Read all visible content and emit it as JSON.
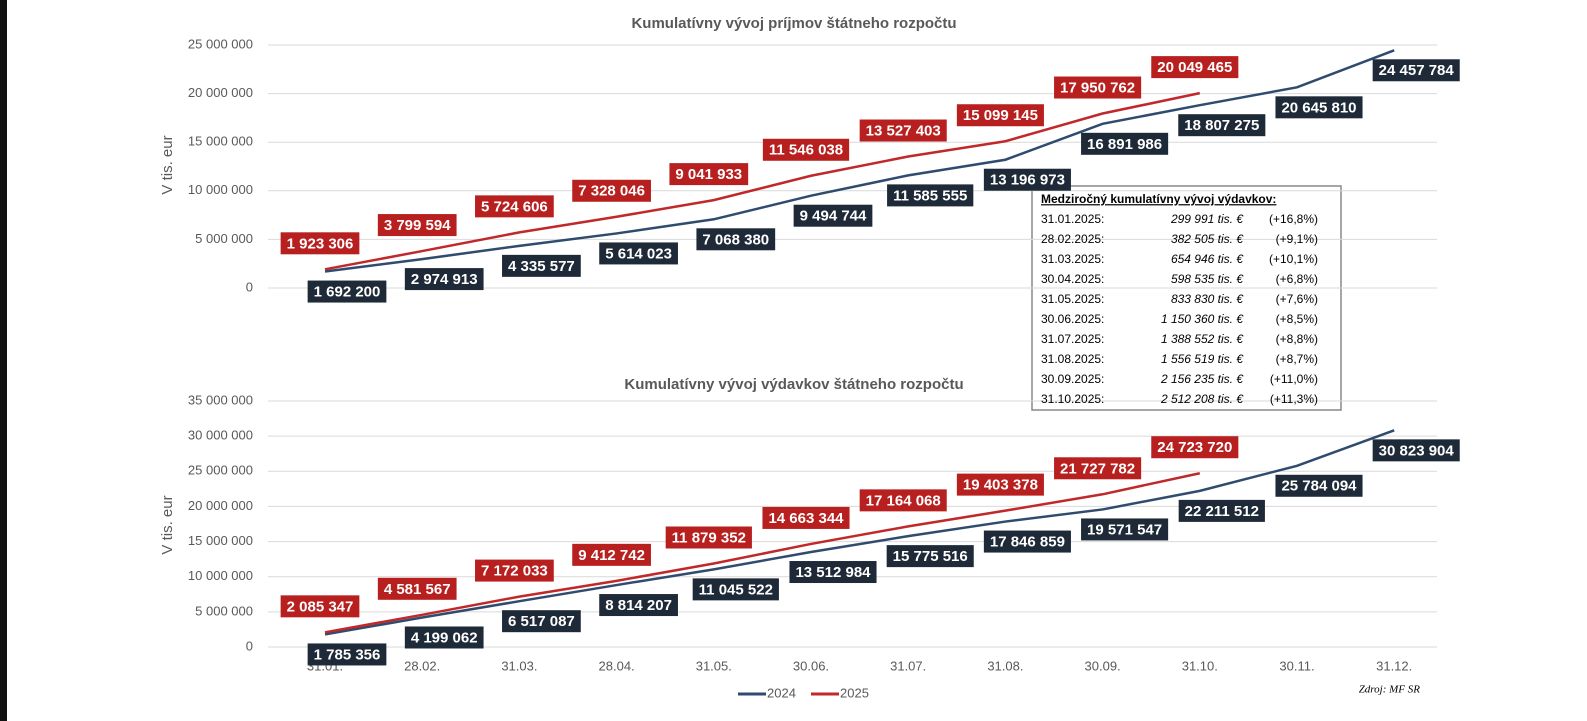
{
  "chart_data": [
    {
      "type": "line",
      "title": "Kumulatívny vývoj príjmov štátneho rozpočtu",
      "ylabel": "V tis. eur",
      "ylim": [
        0,
        25000000
      ],
      "yticks": [
        0,
        {
          "value": 5000000,
          "label": "5 000 000"
        },
        {
          "value": 10000000,
          "label": "10 000 000"
        },
        {
          "value": 15000000,
          "label": "15 000 000"
        },
        {
          "value": 20000000,
          "label": "20 000 000"
        },
        {
          "value": 25000000,
          "label": "25 000 000"
        }
      ],
      "grid": true,
      "series": [
        {
          "color": "#2f4b6e",
          "label_color": "#1f2a38",
          "values": [
            1692200,
            2974913,
            4335577,
            5614023,
            7068380,
            9494744,
            11585555,
            13196973,
            16891986,
            18807275,
            20645810,
            24457784
          ],
          "value_labels": [
            "1 692 200",
            "2 974 913",
            "4 335 577",
            "5 614 023",
            "7 068 380",
            "9 494 744",
            "11 585 555",
            "13 196 973",
            "16 891 986",
            "18 807 275",
            "20 645 810",
            "24 457 784"
          ]
        },
        {
          "color": "#c0282a",
          "label_color": "#b8201f",
          "values": [
            1923306,
            3799594,
            5724606,
            7328046,
            9041933,
            11546038,
            13527403,
            15099145,
            17950762,
            20049465,
            null,
            null
          ],
          "value_labels": [
            "1 923 306",
            "3 799 594",
            "5 724 606",
            "7 328 046",
            "9 041 933",
            "11 546 038",
            "13 527 403",
            "15 099 145",
            "17 950 762",
            "20 049 465",
            null,
            null
          ]
        }
      ]
    },
    {
      "type": "line",
      "title": "Kumulatívny vývoj výdavkov štátneho rozpočtu",
      "ylabel": "V tis. eur",
      "categories": [
        "31.01.",
        "28.02.",
        "31.03.",
        "28.04.",
        "31.05.",
        "30.06.",
        "31.07.",
        "31.08.",
        "30.09.",
        "31.10.",
        "30.11.",
        "31.12."
      ],
      "ylim": [
        0,
        35000000
      ],
      "yticks": [
        0,
        {
          "value": 5000000,
          "label": "5 000 000"
        },
        {
          "value": 10000000,
          "label": "10 000 000"
        },
        {
          "value": 15000000,
          "label": "15 000 000"
        },
        {
          "value": 20000000,
          "label": "20 000 000"
        },
        {
          "value": 25000000,
          "label": "25 000 000"
        },
        {
          "value": 30000000,
          "label": "30 000 000"
        },
        {
          "value": 35000000,
          "label": "35 000 000"
        }
      ],
      "grid": true,
      "legend": "bottom",
      "series": [
        {
          "name": "2024",
          "color": "#2f4b6e",
          "label_color": "#1f2a38",
          "values": [
            1785356,
            4199062,
            6517087,
            8814207,
            11045522,
            13512984,
            15775516,
            17846859,
            19571547,
            22211512,
            25784094,
            30823904
          ],
          "value_labels": [
            "1 785 356",
            "4 199 062",
            "6 517 087",
            "8 814 207",
            "11 045 522",
            "13 512 984",
            "15 775 516",
            "17 846 859",
            "19 571 547",
            "22 211 512",
            "25 784 094",
            "30 823 904"
          ]
        },
        {
          "name": "2025",
          "color": "#c0282a",
          "label_color": "#b8201f",
          "values": [
            2085347,
            4581567,
            7172033,
            9412742,
            11879352,
            14663344,
            17164068,
            19403378,
            21727782,
            24723720,
            null,
            null
          ],
          "value_labels": [
            "2 085 347",
            "4 581 567",
            "7 172 033",
            "9 412 742",
            "11 879 352",
            "14 663 344",
            "17 164 068",
            "19 403 378",
            "21 727 782",
            "24 723 720",
            null,
            null
          ]
        }
      ]
    }
  ],
  "inset": {
    "title": "Medziročný kumulatívny vývoj výdavkov:",
    "rows": [
      [
        "31.01.2025:",
        "299 991 tis. €",
        "(+16,8%)"
      ],
      [
        "28.02.2025:",
        "382 505 tis. €",
        "(+9,1%)"
      ],
      [
        "31.03.2025:",
        "654 946 tis. €",
        "(+10,1%)"
      ],
      [
        "30.04.2025:",
        "598 535 tis. €",
        "(+6,8%)"
      ],
      [
        "31.05.2025:",
        "833 830 tis. €",
        "(+7,6%)"
      ],
      [
        "30.06.2025:",
        "1 150 360 tis. €",
        "(+8,5%)"
      ],
      [
        "31.07.2025:",
        "1 388 552 tis. €",
        "(+8,8%)"
      ],
      [
        "31.08.2025:",
        "1 556 519 tis. €",
        "(+8,7%)"
      ],
      [
        "30.09.2025:",
        "2 156 235 tis. €",
        "(+11,0%)"
      ],
      [
        "31.10.2025:",
        "2 512 208 tis. €",
        "(+11,3%)"
      ]
    ]
  },
  "source": "Zdroj: MF SR"
}
